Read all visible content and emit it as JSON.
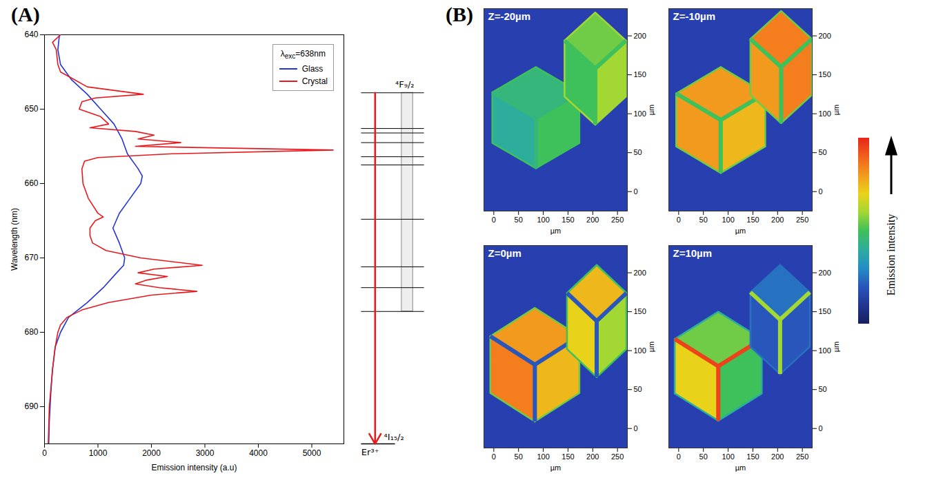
{
  "chart_data": [
    {
      "panel_label": "(A)",
      "type": "line",
      "x_label": "Emission intensity (a.u)",
      "y_label": "Wavelength (nm)",
      "xlim": [
        0,
        5600
      ],
      "xticks": [
        0,
        1000,
        2000,
        3000,
        4000,
        5000
      ],
      "ylim": [
        640,
        695
      ],
      "yticks": [
        640,
        650,
        660,
        670,
        680,
        690
      ],
      "legend": "top-right",
      "legend_title": {
        "symbol": "λ",
        "subscript": "exc",
        "text": "=638nm"
      },
      "series": [
        {
          "name": "Glass",
          "color": "#2234d8",
          "y": [
            640,
            642,
            644,
            646,
            648,
            650,
            652,
            654,
            656,
            658,
            659,
            660,
            662,
            664,
            666,
            668,
            670,
            671,
            672,
            674,
            676,
            678,
            680,
            682,
            685,
            688,
            692,
            695
          ],
          "x": [
            280,
            250,
            300,
            500,
            800,
            1050,
            1300,
            1450,
            1550,
            1750,
            1830,
            1800,
            1600,
            1400,
            1280,
            1400,
            1500,
            1480,
            1350,
            1100,
            800,
            450,
            300,
            200,
            150,
            120,
            90,
            80
          ]
        },
        {
          "name": "Crystal",
          "color": "#e8191c",
          "y": [
            640,
            641,
            642,
            644,
            645,
            646,
            647,
            648,
            648.5,
            649,
            650,
            651,
            652,
            652.5,
            653,
            653.5,
            654,
            654.5,
            655,
            655.5,
            656,
            656.5,
            657,
            658,
            660,
            662,
            664,
            664.5,
            665,
            666,
            667,
            668,
            669,
            670,
            671,
            671.5,
            672,
            672.5,
            673,
            673.5,
            674,
            674.5,
            675,
            676,
            677,
            678,
            679,
            680,
            682,
            685,
            690,
            695
          ],
          "x": [
            300,
            150,
            220,
            250,
            300,
            550,
            800,
            1850,
            950,
            700,
            650,
            1050,
            1200,
            850,
            1700,
            2050,
            1750,
            2550,
            1700,
            5400,
            2400,
            1000,
            750,
            700,
            720,
            820,
            1000,
            1100,
            950,
            850,
            850,
            900,
            1150,
            1800,
            2950,
            2050,
            1750,
            2300,
            1900,
            1700,
            2150,
            2850,
            2000,
            1200,
            700,
            420,
            300,
            250,
            200,
            150,
            90,
            70
          ]
        }
      ],
      "energy_levels": {
        "upper": "⁴F₉/₂",
        "lower": "⁴I₁₅/₂",
        "ion": "Er³⁺",
        "color": "#e8191c",
        "levels": [
          647.8,
          652.6,
          653.2,
          654.5,
          656.4,
          657.5,
          664.8,
          671.2,
          674,
          677.2
        ]
      }
    },
    {
      "panel_label": "(B)",
      "type": "heatmap",
      "x_label": "µm",
      "y_label": "µm",
      "xlim": [
        -20,
        270
      ],
      "xticks": [
        0,
        50,
        100,
        150,
        200,
        250
      ],
      "ylim": [
        -25,
        235
      ],
      "yticks": [
        0,
        50,
        100,
        150,
        200
      ],
      "colorbar": {
        "label": "Emission intensity",
        "range": [
          0,
          1
        ]
      },
      "panels": [
        {
          "title": "Z=-20µm",
          "background": 0.15,
          "crystals": [
            {
              "cx": 85,
              "cy": 95,
              "rx": 88,
              "ry": 65,
              "faces": [
                0.45,
                0.4,
                0.5
              ],
              "outline": 0.5,
              "inner": 0.45
            },
            {
              "cx": 205,
              "cy": 158,
              "rx": 62,
              "ry": 72,
              "faces": [
                0.55,
                0.5,
                0.6
              ],
              "outline": 0.6,
              "inner": 0.5
            }
          ]
        },
        {
          "title": "Z=-10µm",
          "background": 0.15,
          "crystals": [
            {
              "cx": 85,
              "cy": 92,
              "rx": 90,
              "ry": 68,
              "faces": [
                0.8,
                0.8,
                0.75
              ],
              "outline": 0.55,
              "inner": 0.5
            },
            {
              "cx": 207,
              "cy": 160,
              "rx": 62,
              "ry": 72,
              "faces": [
                0.85,
                0.8,
                0.85
              ],
              "outline": 0.55,
              "inner": 0.5
            }
          ]
        },
        {
          "title": "Z=0µm",
          "background": 0.15,
          "crystals": [
            {
              "cx": 83,
              "cy": 82,
              "rx": 90,
              "ry": 73,
              "faces": [
                0.8,
                0.85,
                0.75
              ],
              "outline": 0.55,
              "inner": 0.2
            },
            {
              "cx": 208,
              "cy": 138,
              "rx": 60,
              "ry": 72,
              "faces": [
                0.75,
                0.7,
                0.6
              ],
              "outline": 0.5,
              "inner": 0.2
            }
          ]
        },
        {
          "title": "Z=10µm",
          "background": 0.15,
          "crystals": [
            {
              "cx": 80,
              "cy": 80,
              "rx": 88,
              "ry": 70,
              "faces": [
                0.55,
                0.7,
                0.5
              ],
              "outline": 0.4,
              "inner": 0.95
            },
            {
              "cx": 205,
              "cy": 140,
              "rx": 60,
              "ry": 70,
              "faces": [
                0.25,
                0.2,
                0.2
              ],
              "outline": 0.25,
              "inner": 0.6
            }
          ]
        }
      ]
    }
  ]
}
